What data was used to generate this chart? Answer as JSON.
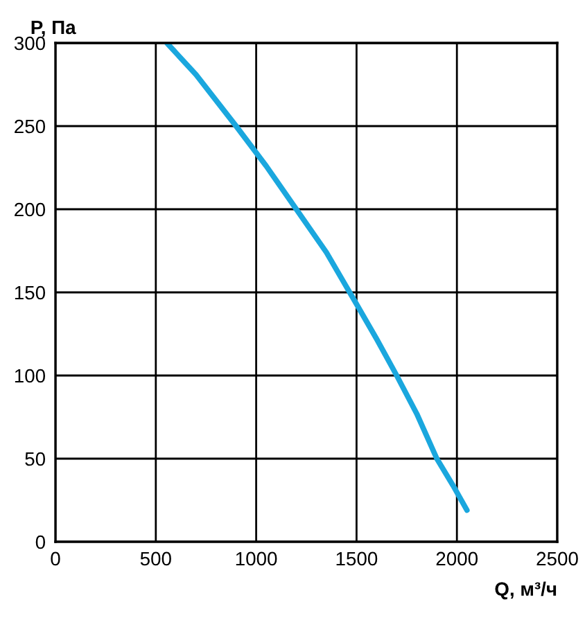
{
  "chart_data": {
    "type": "line",
    "xlabel": "Q, м³/ч",
    "ylabel": "P, Па",
    "series": [
      {
        "color": "#1aa7de",
        "x": [
          555,
          700,
          900,
          1050,
          1200,
          1350,
          1490,
          1600,
          1700,
          1800,
          1900,
          1980,
          2050
        ],
        "values": [
          300,
          281,
          250,
          226,
          200,
          174,
          145,
          122,
          100,
          77,
          50,
          34,
          19
        ]
      }
    ],
    "xlim": [
      0,
      2500
    ],
    "ylim": [
      0,
      300
    ],
    "xticks": [
      0,
      500,
      1000,
      1500,
      2000,
      2500
    ],
    "yticks": [
      0,
      50,
      100,
      150,
      200,
      250,
      300
    ],
    "grid": true,
    "marker": "none",
    "line_style": "solid"
  }
}
